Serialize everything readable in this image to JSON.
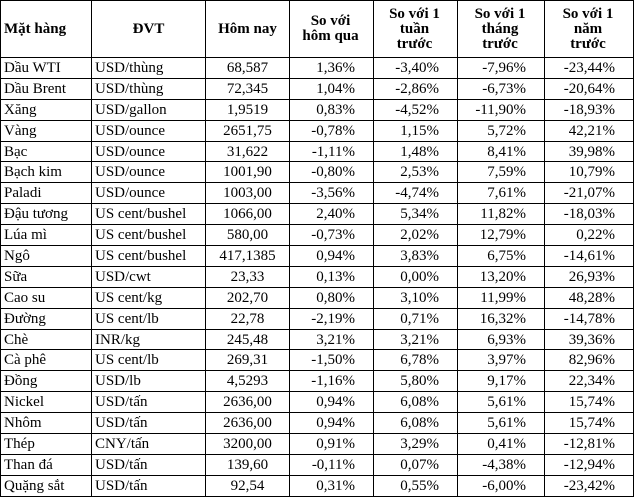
{
  "table": {
    "header": [
      "Mặt hàng",
      "ĐVT",
      "Hôm nay",
      "So với hôm qua",
      "So với 1 tuần trước",
      "So với 1 tháng trước",
      "So với 1 năm trước"
    ],
    "rows": [
      [
        "Dầu WTI",
        "USD/thùng",
        "68,587",
        "1,36%",
        "-3,40%",
        "-7,96%",
        "-23,44%"
      ],
      [
        "Dầu Brent",
        "USD/thùng",
        "72,345",
        "1,04%",
        "-2,86%",
        "-6,73%",
        "-20,64%"
      ],
      [
        "Xăng",
        "USD/gallon",
        "1,9519",
        "0,83%",
        "-4,52%",
        "-11,90%",
        "-18,93%"
      ],
      [
        "Vàng",
        "USD/ounce",
        "2651,75",
        "-0,78%",
        "1,15%",
        "5,72%",
        "42,21%"
      ],
      [
        "Bạc",
        "USD/ounce",
        "31,622",
        "-1,11%",
        "1,48%",
        "8,41%",
        "39,98%"
      ],
      [
        "Bạch kim",
        "USD/ounce",
        "1001,90",
        "-0,80%",
        "2,53%",
        "7,59%",
        "10,79%"
      ],
      [
        "Paladi",
        "USD/ounce",
        "1003,00",
        "-3,56%",
        "-4,74%",
        "7,61%",
        "-21,07%"
      ],
      [
        "Đậu tương",
        "US cent/bushel",
        "1066,00",
        "2,40%",
        "5,34%",
        "11,82%",
        "-18,03%"
      ],
      [
        "Lúa mì",
        "US cent/bushel",
        "580,00",
        "-0,73%",
        "2,02%",
        "12,79%",
        "0,22%"
      ],
      [
        "Ngô",
        "US cent/bushel",
        "417,1385",
        "0,94%",
        "3,83%",
        "6,75%",
        "-14,61%"
      ],
      [
        "Sữa",
        "USD/cwt",
        "23,33",
        "0,13%",
        "0,00%",
        "13,20%",
        "26,93%"
      ],
      [
        "Cao su",
        "US cent/kg",
        "202,70",
        "0,80%",
        "3,10%",
        "11,99%",
        "48,28%"
      ],
      [
        "Đường",
        "US cent/lb",
        "22,78",
        "-2,19%",
        "0,71%",
        "16,32%",
        "-14,78%"
      ],
      [
        "Chè",
        "INR/kg",
        "245,48",
        "3,21%",
        "3,21%",
        "6,93%",
        "39,36%"
      ],
      [
        "Cà phê",
        "US cent/lb",
        "269,31",
        "-1,50%",
        "6,78%",
        "3,97%",
        "82,96%"
      ],
      [
        "Đồng",
        "USD/lb",
        "4,5293",
        "-1,16%",
        "5,80%",
        "9,17%",
        "22,34%"
      ],
      [
        "Nickel",
        "USD/tấn",
        "2636,00",
        "0,94%",
        "6,08%",
        "5,61%",
        "15,74%"
      ],
      [
        "Nhôm",
        "USD/tấn",
        "2636,00",
        "0,94%",
        "6,08%",
        "5,61%",
        "15,74%"
      ],
      [
        "Thép",
        "CNY/tấn",
        "3200,00",
        "0,91%",
        "3,29%",
        "0,41%",
        "-12,81%"
      ],
      [
        "Than đá",
        "USD/tấn",
        "139,60",
        "-0,11%",
        "0,07%",
        "-4,38%",
        "-12,94%"
      ],
      [
        "Quặng sắt",
        "USD/tấn",
        "92,54",
        "0,31%",
        "0,55%",
        "-6,00%",
        "-23,42%"
      ]
    ]
  }
}
